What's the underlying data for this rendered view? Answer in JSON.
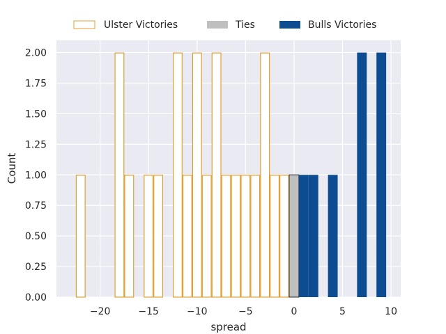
{
  "chart_data": {
    "type": "bar",
    "title": "",
    "xlabel": "spread",
    "ylabel": "Count",
    "xlim": [
      -24.5,
      11
    ],
    "ylim": [
      0,
      2.1
    ],
    "grid": true,
    "bin_width": 1,
    "x_ticks": [
      -20,
      -15,
      -10,
      -5,
      0,
      5,
      10
    ],
    "x_tick_labels": [
      "−20",
      "−15",
      "−10",
      "−5",
      "0",
      "5",
      "10"
    ],
    "y_ticks": [
      0,
      0.25,
      0.5,
      0.75,
      1.0,
      1.25,
      1.5,
      1.75,
      2.0
    ],
    "y_tick_labels": [
      "0.00",
      "0.25",
      "0.50",
      "0.75",
      "1.00",
      "1.25",
      "1.50",
      "1.75",
      "2.00"
    ],
    "legend_position": "top-center",
    "series": [
      {
        "name": "Ulster Victories",
        "style": "outline",
        "color": "#E0A030",
        "x": [
          -22,
          -18,
          -17,
          -15,
          -14,
          -12,
          -11,
          -10,
          -9,
          -8,
          -7,
          -6,
          -5,
          -4,
          -3,
          -2,
          -1
        ],
        "values": [
          1,
          2,
          1,
          1,
          1,
          2,
          1,
          2,
          1,
          2,
          1,
          1,
          1,
          1,
          2,
          1,
          1
        ]
      },
      {
        "name": "Ties",
        "style": "filled",
        "color": "#BFBFBF",
        "x": [
          0
        ],
        "values": [
          1
        ]
      },
      {
        "name": "Bulls Victories",
        "style": "filled",
        "color": "#0E4C92",
        "x": [
          1,
          2,
          4,
          7,
          9
        ],
        "values": [
          1,
          1,
          1,
          2,
          2
        ]
      }
    ]
  }
}
